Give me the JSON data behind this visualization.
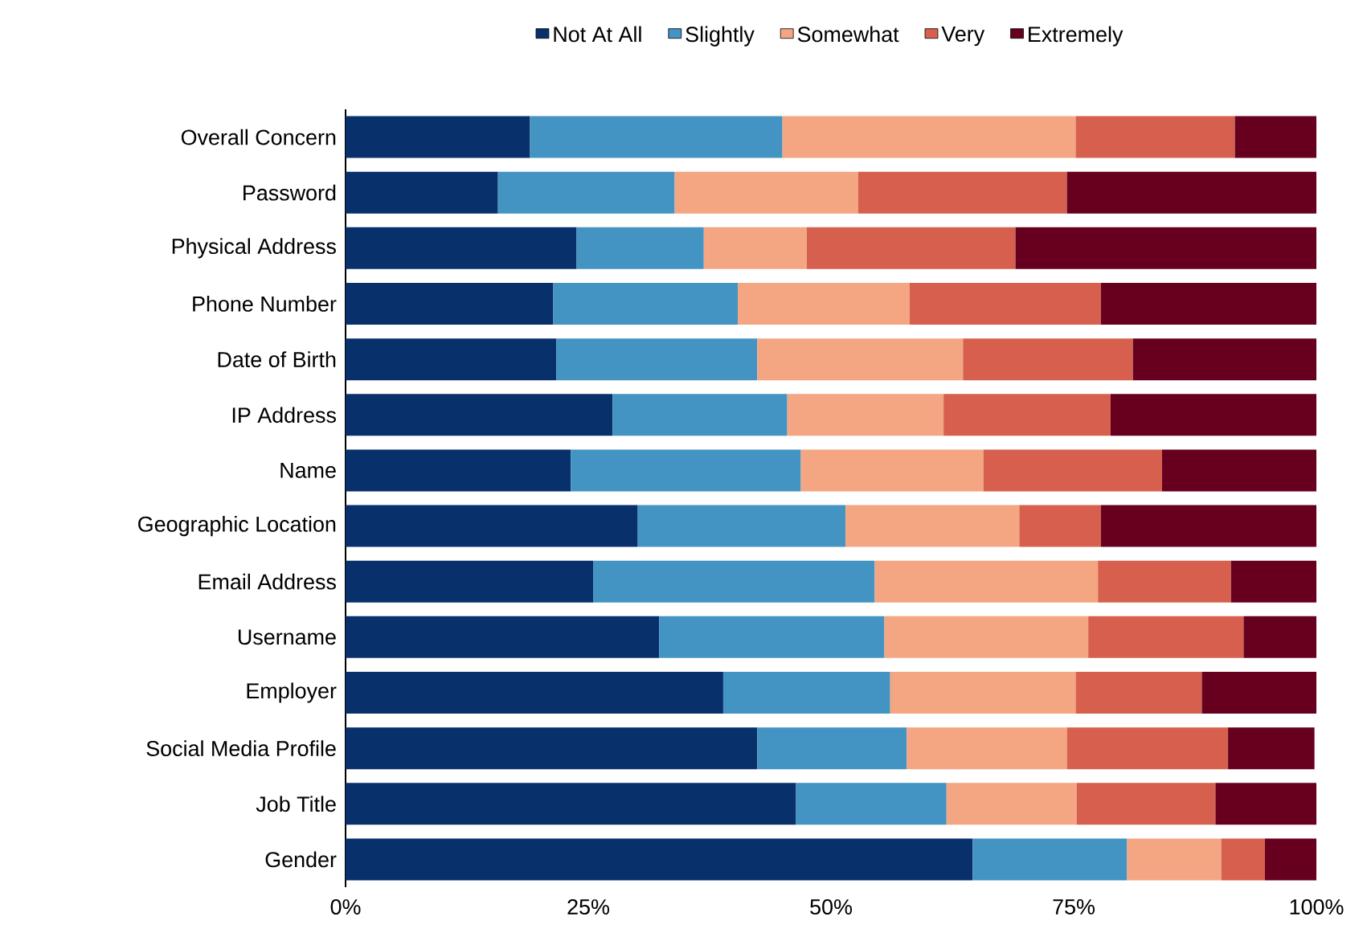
{
  "chart_data": {
    "type": "bar",
    "orientation": "horizontal",
    "stacked": true,
    "legend": "top",
    "grid": false,
    "categories": [
      "Overall Concern",
      "Password",
      "Physical Address",
      "Phone Number",
      "Date of Birth",
      "IP Address",
      "Name",
      "Geographic Location",
      "Email Address",
      "Username",
      "Employer",
      "Social Media Profile",
      "Job Title",
      "Gender"
    ],
    "series": [
      {
        "name": "Not At All",
        "color": "#08306b",
        "values": [
          19.0,
          15.7,
          23.8,
          21.4,
          21.7,
          27.5,
          23.2,
          30.1,
          25.5,
          32.3,
          38.9,
          42.4,
          46.4,
          64.6
        ]
      },
      {
        "name": "Slightly",
        "color": "#4393c3",
        "values": [
          26.0,
          18.2,
          13.1,
          19.0,
          20.7,
          18.0,
          23.7,
          21.4,
          29.0,
          23.2,
          17.2,
          15.4,
          15.5,
          15.9
        ]
      },
      {
        "name": "Somewhat",
        "color": "#f4a582",
        "values": [
          30.2,
          18.9,
          10.6,
          17.7,
          21.2,
          16.1,
          18.8,
          17.9,
          23.0,
          21.0,
          19.1,
          16.5,
          13.4,
          9.7
        ]
      },
      {
        "name": "Very",
        "color": "#d6604d",
        "values": [
          16.4,
          21.5,
          21.5,
          19.7,
          17.5,
          17.2,
          18.4,
          8.4,
          13.7,
          16.0,
          13.0,
          16.6,
          14.3,
          4.5
        ]
      },
      {
        "name": "Extremely",
        "color": "#67001f",
        "values": [
          8.4,
          25.7,
          31.0,
          22.2,
          18.9,
          21.2,
          15.9,
          22.2,
          8.8,
          7.5,
          11.8,
          8.9,
          10.4,
          5.3
        ]
      }
    ],
    "xlim": [
      0,
      100
    ],
    "xticks": [
      {
        "value": 0,
        "label": "0%"
      },
      {
        "value": 25,
        "label": "25%"
      },
      {
        "value": 50,
        "label": "50%"
      },
      {
        "value": 75,
        "label": "75%"
      },
      {
        "value": 100,
        "label": "100%"
      }
    ]
  }
}
